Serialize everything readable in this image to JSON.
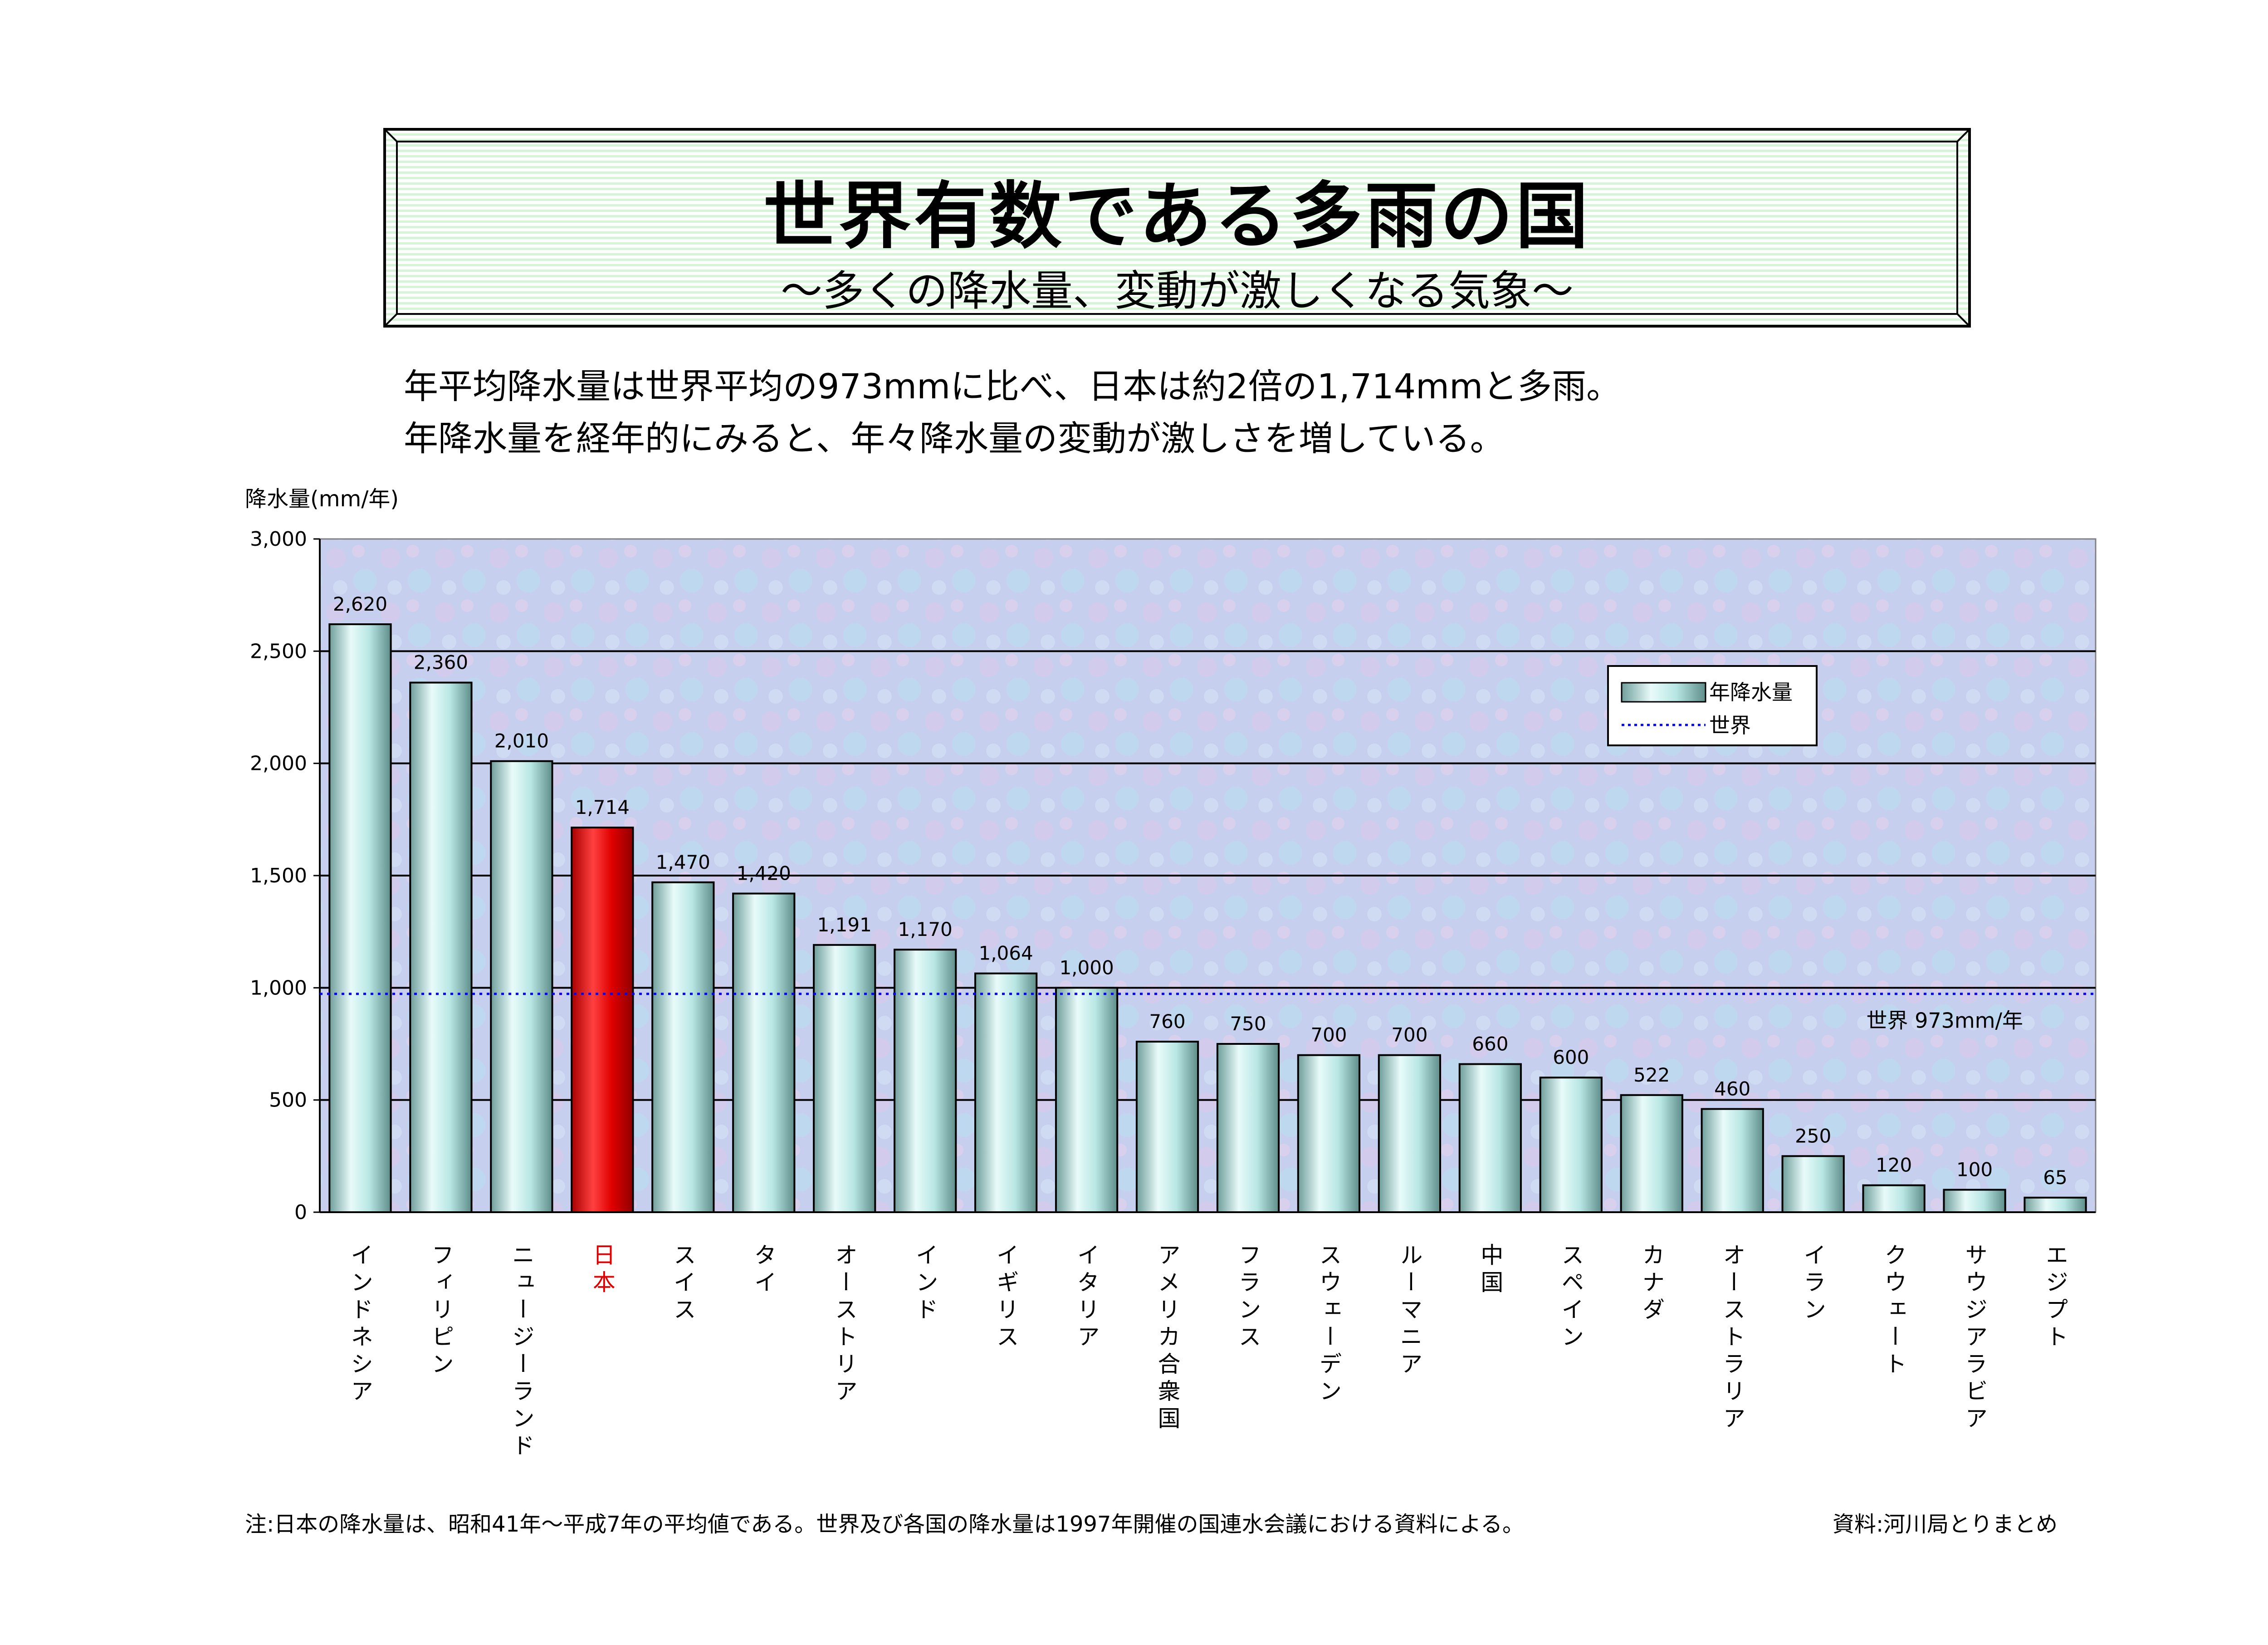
{
  "title": "世界有数である多雨の国",
  "subtitle": "～多くの降水量、変動が激しくなる気象～",
  "description": [
    "年平均降水量は世界平均の973mmに比べ、日本は約2倍の1,714mmと多雨。",
    "年降水量を経年的にみると、年々降水量の変動が激しさを増している。"
  ],
  "note_left": "注:日本の降水量は、昭和41年～平成7年の平均値である。世界及び各国の降水量は1997年開催の国連水会議における資料による。",
  "note_right": "資料:河川局とりまとめ",
  "colors": {
    "bar": "#a9dcd8",
    "highlight_bar": "#e00000",
    "reference_line": "#0000ff",
    "highlight_label": "#e00000"
  },
  "chart_data": {
    "type": "bar",
    "ylabel": "降水量(mm/年)",
    "ylim": [
      0,
      3000
    ],
    "yticks": [
      0,
      500,
      1000,
      1500,
      2000,
      2500,
      3000
    ],
    "ytick_labels": [
      "0",
      "500",
      "1,000",
      "1,500",
      "2,000",
      "2,500",
      "3,000"
    ],
    "grid": true,
    "legend_position": "top-right",
    "categories": [
      "インドネシア",
      "フィリピン",
      "ニュージーランド",
      "日本",
      "スイス",
      "タイ",
      "オーストリア",
      "インド",
      "イギリス",
      "イタリア",
      "アメリカ合衆国",
      "フランス",
      "スウェーデン",
      "ルーマニア",
      "中国",
      "スペイン",
      "カナダ",
      "オーストラリア",
      "イラン",
      "クウェート",
      "サウジアラビア",
      "エジプト"
    ],
    "series": [
      {
        "name": "年降水量",
        "values": [
          2620,
          2360,
          2010,
          1714,
          1470,
          1420,
          1191,
          1170,
          1064,
          1000,
          760,
          750,
          700,
          700,
          660,
          600,
          522,
          460,
          250,
          120,
          100,
          65
        ],
        "value_labels": [
          "2,620",
          "2,360",
          "2,010",
          "1,714",
          "1,470",
          "1,420",
          "1,191",
          "1,170",
          "1,064",
          "1,000",
          "760",
          "750",
          "700",
          "700",
          "660",
          "600",
          "522",
          "460",
          "250",
          "120",
          "100",
          "65"
        ]
      }
    ],
    "highlight_category": "日本",
    "reference_line": {
      "name": "世界",
      "value": 973,
      "label": "世界 973mm/年"
    }
  }
}
